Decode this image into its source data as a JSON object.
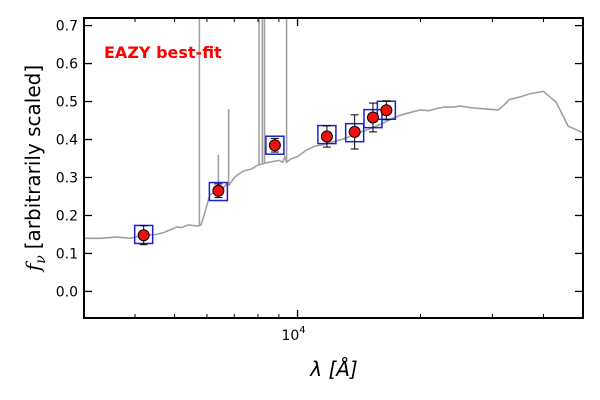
{
  "chart_data": {
    "type": "scatter",
    "annotation": "EAZY best-fit",
    "annotation_color": "#ff0000",
    "xlabel_math": "λ [Å]",
    "ylabel_symbol": "f",
    "ylabel_subscript": "ν",
    "ylabel_text": "[arbitrarily scaled]",
    "x_scale": "log",
    "xlim": [
      3000,
      50000
    ],
    "ylim": [
      -0.07,
      0.72
    ],
    "x_major_tick": {
      "value": 10000,
      "base": "10",
      "exp": "4"
    },
    "x_minor_ticks": [
      4000,
      5000,
      6000,
      7000,
      8000,
      9000,
      20000,
      30000,
      40000
    ],
    "y_ticks": [
      0.0,
      0.1,
      0.2,
      0.3,
      0.4,
      0.5,
      0.6,
      0.7
    ],
    "y_tick_labels": [
      "0.0",
      "0.1",
      "0.2",
      "0.3",
      "0.4",
      "0.5",
      "0.6",
      "0.7"
    ],
    "colors": {
      "sed_line": "#a0a0a0",
      "observed_fill": "#ee1111",
      "observed_edge": "#000000",
      "model_box": "#1f1fcc",
      "errorbar": "#000000"
    },
    "series": [
      {
        "name": "EAZY best-fit SED",
        "style": "line",
        "x": [
          3000,
          3300,
          3600,
          3900,
          4200,
          4500,
          4700,
          4950,
          5050,
          5200,
          5400,
          5600,
          5700,
          5800,
          5900,
          6100,
          6300,
          6500,
          6650,
          6700,
          6800,
          7000,
          7200,
          7400,
          7700,
          8000,
          8500,
          9000,
          9200,
          9300,
          9400,
          9600,
          10000,
          10500,
          11000,
          11500,
          12000,
          13000,
          14000,
          15000,
          16000,
          17000,
          18000,
          19000,
          20000,
          21000,
          22000,
          23000,
          24000,
          25000,
          27000,
          29000,
          31000,
          32000,
          33000,
          35000,
          37000,
          40000,
          43000,
          46000,
          50000
        ],
        "y": [
          0.14,
          0.14,
          0.143,
          0.14,
          0.148,
          0.15,
          0.155,
          0.165,
          0.17,
          0.168,
          0.175,
          0.173,
          0.172,
          0.175,
          0.2,
          0.255,
          0.262,
          0.268,
          0.278,
          0.283,
          0.28,
          0.3,
          0.31,
          0.318,
          0.322,
          0.333,
          0.34,
          0.345,
          0.34,
          0.355,
          0.34,
          0.348,
          0.355,
          0.372,
          0.382,
          0.386,
          0.392,
          0.402,
          0.416,
          0.428,
          0.44,
          0.455,
          0.465,
          0.472,
          0.478,
          0.476,
          0.482,
          0.486,
          0.485,
          0.488,
          0.483,
          0.48,
          0.478,
          0.49,
          0.505,
          0.512,
          0.52,
          0.527,
          0.498,
          0.435,
          0.418
        ]
      },
      {
        "name": "Emission lines",
        "style": "spikes",
        "x": [
          5750,
          6400,
          6780,
          8050,
          8200,
          8300,
          9400
        ],
        "y": [
          0.72,
          0.36,
          0.48,
          0.72,
          0.72,
          0.72,
          0.72
        ]
      },
      {
        "name": "Model photometry",
        "style": "square",
        "x": [
          4200,
          6400,
          8800,
          11800,
          13800,
          15300,
          16500
        ],
        "y": [
          0.15,
          0.263,
          0.385,
          0.413,
          0.418,
          0.455,
          0.477
        ]
      },
      {
        "name": "Observed photometry",
        "style": "errorbar",
        "x": [
          4200,
          6400,
          8800,
          11800,
          13800,
          15300,
          16500
        ],
        "y": [
          0.148,
          0.265,
          0.385,
          0.408,
          0.42,
          0.458,
          0.477
        ],
        "yerr": [
          0.025,
          0.018,
          0.018,
          0.028,
          0.045,
          0.038,
          0.025
        ]
      }
    ]
  }
}
